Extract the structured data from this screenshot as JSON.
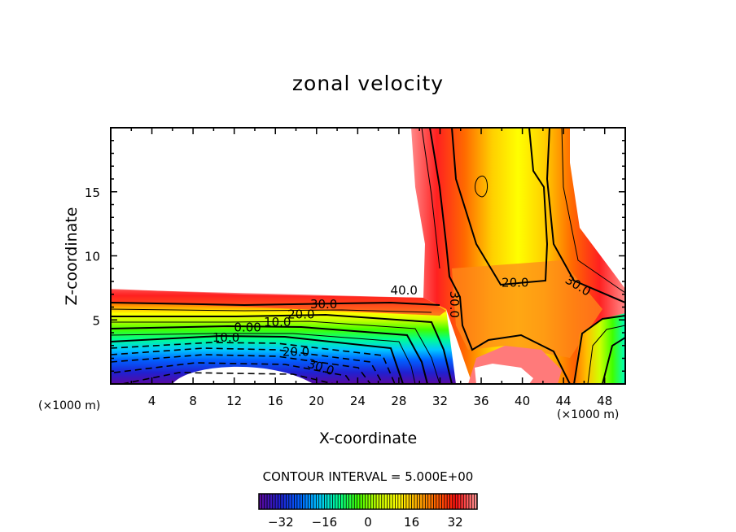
{
  "chart_data": {
    "type": "heatmap",
    "subtype": "filled-contour",
    "title": "zonal velocity",
    "xlabel": "X-coordinate",
    "ylabel": "Z-coordinate",
    "x_unit_label": "(×1000 m)",
    "xlim": [
      0,
      50
    ],
    "ylim": [
      0,
      20
    ],
    "x_ticks": [
      4,
      8,
      12,
      16,
      20,
      24,
      28,
      32,
      36,
      40,
      44,
      48
    ],
    "x_tick_labels": [
      "4",
      "8",
      "12",
      "16",
      "20",
      "24",
      "28",
      "32",
      "36",
      "40",
      "44",
      "48"
    ],
    "y_ticks": [
      5,
      10,
      15
    ],
    "y_tick_labels": [
      "5",
      "10",
      "15"
    ],
    "contour_interval_text": "CONTOUR INTERVAL = 5.000E+00",
    "contour_interval": 5.0,
    "contour_labels": [
      "40.0",
      "30.0",
      "20.0",
      "10.0",
      "0.00",
      "10.0",
      "20.0",
      "30.0",
      "30.0",
      "20.0",
      "30.0"
    ],
    "colorbar": {
      "range": [
        -40,
        40
      ],
      "tick_values": [
        -32,
        -16,
        0,
        16,
        32
      ],
      "tick_labels": [
        "−32",
        "−16",
        "0",
        "16",
        "32"
      ],
      "colors": [
        "#5a0aa0",
        "#2020d0",
        "#0060ff",
        "#00c8ff",
        "#00ff90",
        "#40ff00",
        "#c8ff00",
        "#ffff00",
        "#ffb000",
        "#ff6000",
        "#ff1010",
        "#ff9090"
      ]
    },
    "grid": false,
    "legend": "colorbar bottom"
  }
}
